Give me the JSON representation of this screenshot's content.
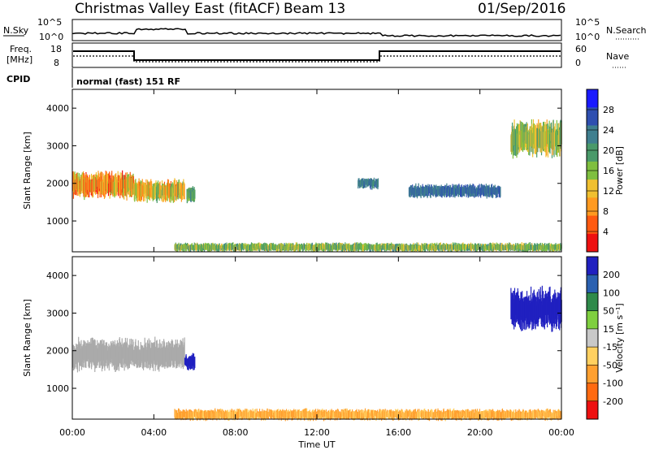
{
  "header": {
    "title": "Christmas Valley East (fitACF)",
    "beam": "Beam 13",
    "date": "01/Sep/2016"
  },
  "top_panels": {
    "nsky_label": "N.Sky",
    "nsearch_label": "N.Search",
    "nsky_ticks": [
      "10^5",
      "10^0"
    ],
    "freq_label_1": "Freq.",
    "freq_label_2": "[MHz]",
    "freq_ticks": [
      "18",
      "8"
    ],
    "nave_label": "Nave",
    "nave_ticks": [
      "60",
      "0"
    ],
    "cpid_label": "CPID",
    "cpid_text": "normal (fast) 151 RF"
  },
  "colors": {
    "power_scale": [
      "#1a1aff",
      "#2f4fb0",
      "#3f7f8f",
      "#4a9a6a",
      "#7fbf3f",
      "#f0c030",
      "#ff9a20",
      "#ff5a10",
      "#ee1010"
    ],
    "velocity_scale": [
      "#2020c0",
      "#2a60b0",
      "#2f8a4a",
      "#7fcf3f",
      "#c8c8c8",
      "#ffd060",
      "#ffa030",
      "#ff6a10",
      "#ee1010"
    ],
    "ground": "#aaaaaa"
  },
  "chart_data": [
    {
      "type": "heatmap",
      "panel": "power",
      "ylabel": "Slant Range [km]",
      "xlabel": "",
      "xlim": [
        0,
        24
      ],
      "ylim": [
        180,
        4500
      ],
      "x_ticks": [
        "00:00",
        "04:00",
        "08:00",
        "12:00",
        "16:00",
        "20:00",
        "00:00"
      ],
      "y_ticks": [
        "4000",
        "3000",
        "2000",
        "1000"
      ],
      "colorbar": {
        "label": "Power [dB]",
        "ticks": [
          "28",
          "24",
          "20",
          "16",
          "12",
          "8",
          "4"
        ]
      },
      "features": [
        {
          "name": "echo band A",
          "t_start": 0.0,
          "t_end": 3.0,
          "range_center_km": 1950,
          "range_width_km": 600,
          "peak_power_db": 30
        },
        {
          "name": "echo band B",
          "t_start": 3.0,
          "t_end": 5.5,
          "range_center_km": 1800,
          "range_width_km": 500,
          "peak_power_db": 26
        },
        {
          "name": "echo band C",
          "t_start": 5.6,
          "t_end": 6.0,
          "range_center_km": 1700,
          "range_width_km": 350,
          "peak_power_db": 18
        },
        {
          "name": "near range clutter",
          "t_start": 5.0,
          "t_end": 24.0,
          "range_center_km": 300,
          "range_width_km": 200,
          "peak_power_db": 20
        },
        {
          "name": "evening streak 1",
          "t_start": 14.0,
          "t_end": 15.0,
          "range_center_km": 2000,
          "range_width_km": 250,
          "peak_power_db": 12
        },
        {
          "name": "evening streak 2",
          "t_start": 16.5,
          "t_end": 21.0,
          "range_center_km": 1800,
          "range_width_km": 300,
          "peak_power_db": 10
        },
        {
          "name": "late echo",
          "t_start": 21.5,
          "t_end": 24.0,
          "range_center_km": 3200,
          "range_width_km": 800,
          "peak_power_db": 22
        }
      ]
    },
    {
      "type": "heatmap",
      "panel": "velocity",
      "ylabel": "Slant Range [km]",
      "xlabel": "Time UT",
      "xlim": [
        0,
        24
      ],
      "ylim": [
        180,
        4500
      ],
      "x_ticks": [
        "00:00",
        "04:00",
        "08:00",
        "12:00",
        "16:00",
        "20:00",
        "00:00"
      ],
      "y_ticks": [
        "4000",
        "3000",
        "2000",
        "1000"
      ],
      "colorbar": {
        "label": "Velocity [m s⁻¹]",
        "ticks": [
          "200",
          "100",
          "50",
          "15",
          "-15",
          "-50",
          "-100",
          "-200"
        ]
      },
      "features": [
        {
          "name": "ground scatter A",
          "t_start": 0.0,
          "t_end": 5.5,
          "range_center_km": 1900,
          "range_width_km": 700,
          "velocity_ms": 0
        },
        {
          "name": "blue patch",
          "t_start": 5.5,
          "t_end": 6.0,
          "range_center_km": 1700,
          "range_width_km": 350,
          "velocity_ms": 250
        },
        {
          "name": "near range flow",
          "t_start": 5.0,
          "t_end": 24.0,
          "range_center_km": 300,
          "range_width_km": 250,
          "velocity_ms": -60
        },
        {
          "name": "late echo",
          "t_start": 21.5,
          "t_end": 24.0,
          "range_center_km": 3100,
          "range_width_km": 900,
          "velocity_ms": 220
        }
      ]
    }
  ]
}
